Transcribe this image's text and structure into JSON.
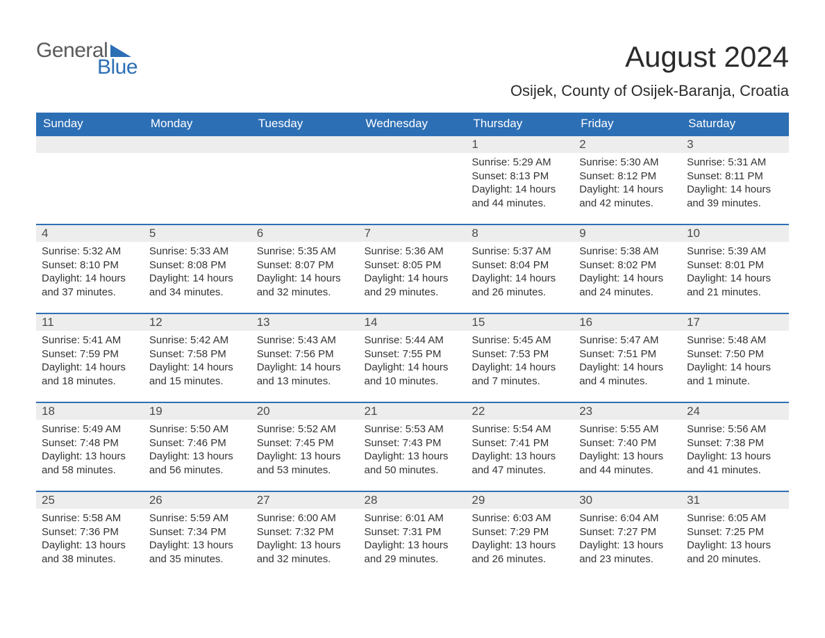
{
  "logo": {
    "text1": "General",
    "text2": "Blue",
    "accent_color": "#2d6fb5",
    "gray_color": "#5a5a5a"
  },
  "title": "August 2024",
  "location": "Osijek, County of Osijek-Baranja, Croatia",
  "colors": {
    "header_bg": "#2d6fb5",
    "header_text": "#ffffff",
    "daynum_bg": "#ededed",
    "border_top": "#2d6fb5",
    "body_text": "#333333",
    "background": "#ffffff"
  },
  "days_of_week": [
    "Sunday",
    "Monday",
    "Tuesday",
    "Wednesday",
    "Thursday",
    "Friday",
    "Saturday"
  ],
  "weeks": [
    [
      null,
      null,
      null,
      null,
      {
        "n": "1",
        "sunrise": "Sunrise: 5:29 AM",
        "sunset": "Sunset: 8:13 PM",
        "daylight": "Daylight: 14 hours and 44 minutes."
      },
      {
        "n": "2",
        "sunrise": "Sunrise: 5:30 AM",
        "sunset": "Sunset: 8:12 PM",
        "daylight": "Daylight: 14 hours and 42 minutes."
      },
      {
        "n": "3",
        "sunrise": "Sunrise: 5:31 AM",
        "sunset": "Sunset: 8:11 PM",
        "daylight": "Daylight: 14 hours and 39 minutes."
      }
    ],
    [
      {
        "n": "4",
        "sunrise": "Sunrise: 5:32 AM",
        "sunset": "Sunset: 8:10 PM",
        "daylight": "Daylight: 14 hours and 37 minutes."
      },
      {
        "n": "5",
        "sunrise": "Sunrise: 5:33 AM",
        "sunset": "Sunset: 8:08 PM",
        "daylight": "Daylight: 14 hours and 34 minutes."
      },
      {
        "n": "6",
        "sunrise": "Sunrise: 5:35 AM",
        "sunset": "Sunset: 8:07 PM",
        "daylight": "Daylight: 14 hours and 32 minutes."
      },
      {
        "n": "7",
        "sunrise": "Sunrise: 5:36 AM",
        "sunset": "Sunset: 8:05 PM",
        "daylight": "Daylight: 14 hours and 29 minutes."
      },
      {
        "n": "8",
        "sunrise": "Sunrise: 5:37 AM",
        "sunset": "Sunset: 8:04 PM",
        "daylight": "Daylight: 14 hours and 26 minutes."
      },
      {
        "n": "9",
        "sunrise": "Sunrise: 5:38 AM",
        "sunset": "Sunset: 8:02 PM",
        "daylight": "Daylight: 14 hours and 24 minutes."
      },
      {
        "n": "10",
        "sunrise": "Sunrise: 5:39 AM",
        "sunset": "Sunset: 8:01 PM",
        "daylight": "Daylight: 14 hours and 21 minutes."
      }
    ],
    [
      {
        "n": "11",
        "sunrise": "Sunrise: 5:41 AM",
        "sunset": "Sunset: 7:59 PM",
        "daylight": "Daylight: 14 hours and 18 minutes."
      },
      {
        "n": "12",
        "sunrise": "Sunrise: 5:42 AM",
        "sunset": "Sunset: 7:58 PM",
        "daylight": "Daylight: 14 hours and 15 minutes."
      },
      {
        "n": "13",
        "sunrise": "Sunrise: 5:43 AM",
        "sunset": "Sunset: 7:56 PM",
        "daylight": "Daylight: 14 hours and 13 minutes."
      },
      {
        "n": "14",
        "sunrise": "Sunrise: 5:44 AM",
        "sunset": "Sunset: 7:55 PM",
        "daylight": "Daylight: 14 hours and 10 minutes."
      },
      {
        "n": "15",
        "sunrise": "Sunrise: 5:45 AM",
        "sunset": "Sunset: 7:53 PM",
        "daylight": "Daylight: 14 hours and 7 minutes."
      },
      {
        "n": "16",
        "sunrise": "Sunrise: 5:47 AM",
        "sunset": "Sunset: 7:51 PM",
        "daylight": "Daylight: 14 hours and 4 minutes."
      },
      {
        "n": "17",
        "sunrise": "Sunrise: 5:48 AM",
        "sunset": "Sunset: 7:50 PM",
        "daylight": "Daylight: 14 hours and 1 minute."
      }
    ],
    [
      {
        "n": "18",
        "sunrise": "Sunrise: 5:49 AM",
        "sunset": "Sunset: 7:48 PM",
        "daylight": "Daylight: 13 hours and 58 minutes."
      },
      {
        "n": "19",
        "sunrise": "Sunrise: 5:50 AM",
        "sunset": "Sunset: 7:46 PM",
        "daylight": "Daylight: 13 hours and 56 minutes."
      },
      {
        "n": "20",
        "sunrise": "Sunrise: 5:52 AM",
        "sunset": "Sunset: 7:45 PM",
        "daylight": "Daylight: 13 hours and 53 minutes."
      },
      {
        "n": "21",
        "sunrise": "Sunrise: 5:53 AM",
        "sunset": "Sunset: 7:43 PM",
        "daylight": "Daylight: 13 hours and 50 minutes."
      },
      {
        "n": "22",
        "sunrise": "Sunrise: 5:54 AM",
        "sunset": "Sunset: 7:41 PM",
        "daylight": "Daylight: 13 hours and 47 minutes."
      },
      {
        "n": "23",
        "sunrise": "Sunrise: 5:55 AM",
        "sunset": "Sunset: 7:40 PM",
        "daylight": "Daylight: 13 hours and 44 minutes."
      },
      {
        "n": "24",
        "sunrise": "Sunrise: 5:56 AM",
        "sunset": "Sunset: 7:38 PM",
        "daylight": "Daylight: 13 hours and 41 minutes."
      }
    ],
    [
      {
        "n": "25",
        "sunrise": "Sunrise: 5:58 AM",
        "sunset": "Sunset: 7:36 PM",
        "daylight": "Daylight: 13 hours and 38 minutes."
      },
      {
        "n": "26",
        "sunrise": "Sunrise: 5:59 AM",
        "sunset": "Sunset: 7:34 PM",
        "daylight": "Daylight: 13 hours and 35 minutes."
      },
      {
        "n": "27",
        "sunrise": "Sunrise: 6:00 AM",
        "sunset": "Sunset: 7:32 PM",
        "daylight": "Daylight: 13 hours and 32 minutes."
      },
      {
        "n": "28",
        "sunrise": "Sunrise: 6:01 AM",
        "sunset": "Sunset: 7:31 PM",
        "daylight": "Daylight: 13 hours and 29 minutes."
      },
      {
        "n": "29",
        "sunrise": "Sunrise: 6:03 AM",
        "sunset": "Sunset: 7:29 PM",
        "daylight": "Daylight: 13 hours and 26 minutes."
      },
      {
        "n": "30",
        "sunrise": "Sunrise: 6:04 AM",
        "sunset": "Sunset: 7:27 PM",
        "daylight": "Daylight: 13 hours and 23 minutes."
      },
      {
        "n": "31",
        "sunrise": "Sunrise: 6:05 AM",
        "sunset": "Sunset: 7:25 PM",
        "daylight": "Daylight: 13 hours and 20 minutes."
      }
    ]
  ]
}
